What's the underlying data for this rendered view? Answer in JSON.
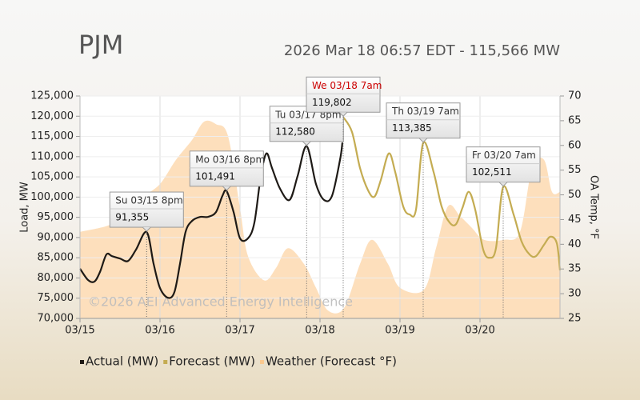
{
  "chart_data": {
    "type": "line",
    "title": "PJM",
    "subtitle": "2026 Mar 18 06:57 EDT - 115,566 MW",
    "watermark": "©2026 AEI Advanced Energy Intelligence",
    "ylabel": "Load, MW",
    "y2label": "OA Temp, °F",
    "xlim": [
      15,
      21
    ],
    "xticks": [
      {
        "value": 15,
        "label": "03/15"
      },
      {
        "value": 16,
        "label": "03/16"
      },
      {
        "value": 17,
        "label": "03/17"
      },
      {
        "value": 18,
        "label": "03/18"
      },
      {
        "value": 19,
        "label": "03/19"
      },
      {
        "value": 20,
        "label": "03/20"
      }
    ],
    "ylim": [
      70000,
      125000
    ],
    "yticks": [
      {
        "value": 70000,
        "label": "70,000"
      },
      {
        "value": 75000,
        "label": "75,000"
      },
      {
        "value": 80000,
        "label": "80,000"
      },
      {
        "value": 85000,
        "label": "85,000"
      },
      {
        "value": 90000,
        "label": "90,000"
      },
      {
        "value": 95000,
        "label": "95,000"
      },
      {
        "value": 100000,
        "label": "100,000"
      },
      {
        "value": 105000,
        "label": "105,000"
      },
      {
        "value": 110000,
        "label": "110,000"
      },
      {
        "value": 115000,
        "label": "115,000"
      },
      {
        "value": 120000,
        "label": "120,000"
      },
      {
        "value": 125000,
        "label": "125,000"
      }
    ],
    "y2lim": [
      25,
      70
    ],
    "y2ticks": [
      25,
      30,
      35,
      40,
      45,
      50,
      55,
      60,
      65,
      70
    ],
    "grid": true,
    "legend": "bottom",
    "series": [
      {
        "name": "Actual (MW)",
        "color": "#1e1a16",
        "kind": "line",
        "x": [
          15.0,
          15.1,
          15.18,
          15.25,
          15.33,
          15.4,
          15.5,
          15.6,
          15.7,
          15.833,
          15.92,
          16.0,
          16.1,
          16.18,
          16.25,
          16.32,
          16.4,
          16.5,
          16.6,
          16.7,
          16.78,
          16.833,
          16.92,
          17.0,
          17.1,
          17.18,
          17.26,
          17.33,
          17.4,
          17.5,
          17.62,
          17.72,
          17.833,
          17.95,
          18.05,
          18.15,
          18.25,
          18.28
        ],
        "values": [
          82300,
          79500,
          79100,
          81500,
          85800,
          85400,
          84800,
          84200,
          87000,
          91355,
          83500,
          77500,
          75100,
          76500,
          83500,
          91400,
          94100,
          95100,
          95100,
          96300,
          100300,
          101491,
          96300,
          89800,
          89800,
          93700,
          105200,
          110800,
          107200,
          102100,
          99300,
          105200,
          112580,
          103200,
          99300,
          100300,
          109200,
          113500
        ]
      },
      {
        "name": "Forecast (MW)",
        "color": "#c4ac52",
        "kind": "line",
        "x": [
          18.29,
          18.4,
          18.5,
          18.6,
          18.68,
          18.76,
          18.86,
          18.94,
          19.04,
          19.12,
          19.2,
          19.29,
          19.42,
          19.52,
          19.62,
          19.7,
          19.78,
          19.86,
          19.94,
          20.04,
          20.12,
          20.2,
          20.29,
          20.42,
          20.52,
          20.62,
          20.7,
          20.8,
          20.88,
          20.96,
          21.0
        ],
        "values": [
          119802,
          116100,
          107200,
          101700,
          100100,
          104200,
          110800,
          106200,
          97700,
          95700,
          96900,
          113385,
          106200,
          97700,
          93700,
          93300,
          97300,
          101300,
          96900,
          87000,
          85000,
          87400,
          102511,
          95700,
          89000,
          85800,
          85400,
          88200,
          90200,
          88600,
          81900
        ]
      },
      {
        "name": "Weather (Forecast °F)",
        "color": "#fbc98f",
        "kind": "area",
        "axis": "y2",
        "x": [
          15.0,
          15.4,
          15.6,
          15.8,
          16.0,
          16.2,
          16.4,
          16.55,
          16.7,
          16.85,
          17.0,
          17.1,
          17.3,
          17.45,
          17.6,
          17.8,
          17.95,
          18.1,
          18.3,
          18.5,
          18.65,
          18.85,
          19.0,
          19.3,
          19.45,
          19.6,
          19.75,
          19.9,
          20.05,
          20.3,
          20.5,
          20.65,
          20.8,
          20.9,
          21.0
        ],
        "values": [
          42.5,
          44.1,
          47.3,
          49.8,
          52.2,
          57.1,
          61.1,
          64.8,
          64.3,
          61.9,
          47.3,
          37.6,
          32.7,
          35.2,
          39.2,
          36.0,
          31.2,
          26.6,
          27.1,
          36.0,
          40.9,
          36.0,
          31.2,
          30.8,
          39.2,
          47.7,
          45.7,
          43.3,
          40.9,
          40.9,
          42.5,
          55.4,
          57.1,
          50.6,
          50.6
        ]
      }
    ],
    "annotations": [
      {
        "x": 15.833,
        "y": 91355,
        "label": "Su 03/15 8pm",
        "value_label": "91,355"
      },
      {
        "x": 16.833,
        "y": 101491,
        "label": "Mo 03/16 8pm",
        "value_label": "101,491"
      },
      {
        "x": 17.833,
        "y": 112580,
        "label": "Tu 03/17 8pm",
        "value_label": "112,580"
      },
      {
        "x": 18.29,
        "y": 119802,
        "label": "We 03/18 7am",
        "value_label": "119,802",
        "label_color": "#cc0000"
      },
      {
        "x": 19.29,
        "y": 113385,
        "label": "Th 03/19 7am",
        "value_label": "113,385"
      },
      {
        "x": 20.29,
        "y": 102511,
        "label": "Fr 03/20 7am",
        "value_label": "102,511"
      }
    ]
  }
}
